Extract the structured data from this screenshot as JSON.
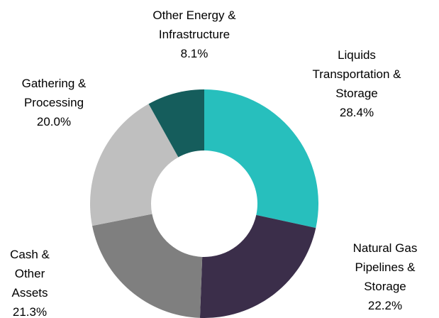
{
  "chart_data": {
    "type": "donut",
    "categories": [
      "Liquids Transportation & Storage",
      "Natural Gas Pipelines & Storage",
      "Cash & Other Assets",
      "Gathering & Processing",
      "Other Energy & Infrastructure"
    ],
    "values": [
      28.4,
      22.2,
      21.3,
      20.0,
      8.1
    ],
    "value_labels": [
      "28.4%",
      "22.2%",
      "21.3%",
      "20.0%",
      "8.1%"
    ],
    "colors": [
      "#27bfbd",
      "#3b2e4a",
      "#7f7f7f",
      "#bfbfbf",
      "#155d5c"
    ]
  }
}
